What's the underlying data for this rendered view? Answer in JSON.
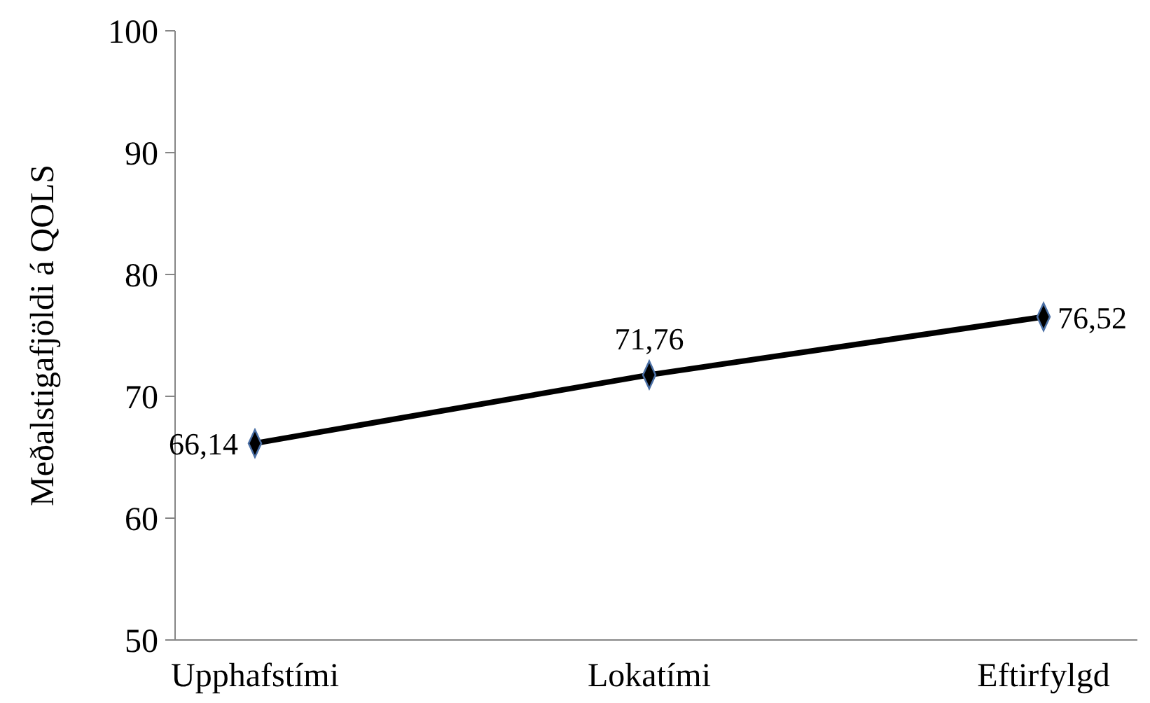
{
  "chart_data": {
    "type": "line",
    "ylabel": "Meðalstigafjöldi á QOLS",
    "categories": [
      "Upphafstími",
      "Lokatími",
      "Eftirfylgd"
    ],
    "series": [
      {
        "color": "#000000",
        "values": [
          66.14,
          71.76,
          76.52
        ],
        "value_labels": [
          "66,14",
          "71,76",
          "76,52"
        ]
      }
    ],
    "ylim": [
      50,
      100
    ],
    "yticks": [
      50,
      60,
      70,
      80,
      90,
      100
    ],
    "grid": false,
    "marker": "diamond",
    "line_style": "solid"
  }
}
